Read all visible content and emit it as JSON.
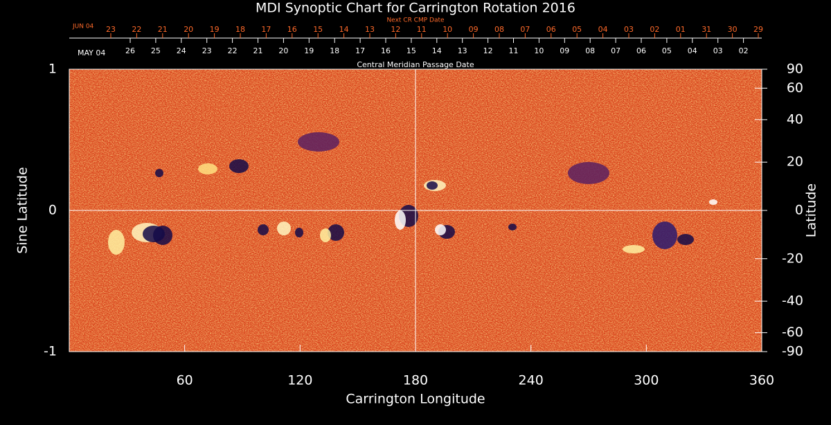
{
  "chart_data": {
    "type": "synoptic_map",
    "title": "MDI Synoptic Chart for Carrington Rotation 2016",
    "xlabel": "Carrington Longitude",
    "ylabel": "Sine Latitude",
    "y2label": "Latitude",
    "xlim": [
      0,
      360
    ],
    "xticks": [
      60,
      120,
      180,
      240,
      300,
      360
    ],
    "ylim": [
      -1,
      1
    ],
    "yticks": [
      -1,
      0,
      1
    ],
    "y2ticks": [
      90,
      60,
      40,
      20,
      0,
      -20,
      -40,
      -60,
      -90
    ],
    "next_cmp_label": "Next CR CMP Date",
    "next_cmp_start": "JUN 04",
    "next_cmp_dates": [
      "23",
      "22",
      "21",
      "20",
      "19",
      "18",
      "17",
      "16",
      "15",
      "14",
      "13",
      "12",
      "11",
      "10",
      "09",
      "08",
      "07",
      "06",
      "05",
      "04",
      "03",
      "02",
      "01",
      "31",
      "30",
      "29"
    ],
    "cmp_label": "Central Meridian Passage Date",
    "cmp_start": "MAY 04",
    "cmp_dates": [
      "26",
      "25",
      "24",
      "23",
      "22",
      "21",
      "20",
      "19",
      "18",
      "17",
      "16",
      "15",
      "14",
      "13",
      "12",
      "11",
      "10",
      "09",
      "08",
      "07",
      "06",
      "05",
      "04",
      "03",
      "02"
    ]
  }
}
